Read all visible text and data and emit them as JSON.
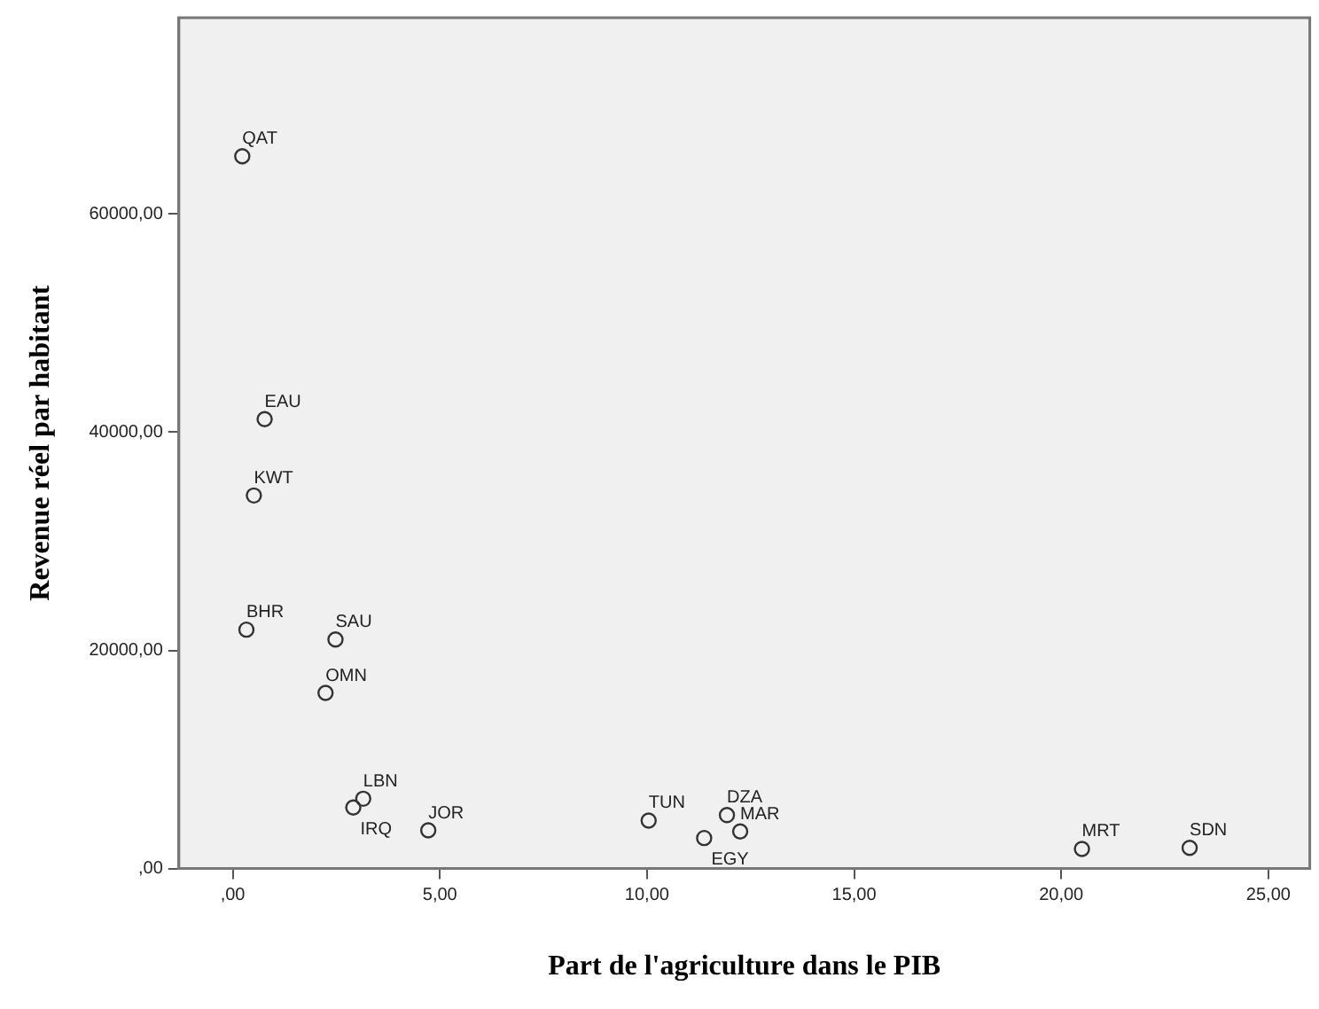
{
  "chart_data": {
    "type": "scatter",
    "xlabel": "Part de l'agriculture dans le PIB",
    "ylabel": "Revenue réel par habitant",
    "x": [
      0.23,
      0.77,
      0.51,
      0.33,
      2.48,
      2.24,
      3.15,
      2.91,
      4.72,
      10.04,
      11.38,
      11.93,
      12.25,
      20.5,
      23.1
    ],
    "series": [
      {
        "color": "#333333",
        "values": [
          65300,
          41200,
          34200,
          21900,
          21000,
          16100,
          6400,
          5600,
          3500,
          4400,
          2800,
          4900,
          3400,
          1800,
          1900
        ]
      }
    ],
    "xlim": [
      -1.3,
      26
    ],
    "ylim": [
      0,
      78000
    ],
    "xticks": [
      {
        "value": 0,
        "label": ",00"
      },
      {
        "value": 5,
        "label": "5,00"
      },
      {
        "value": 10,
        "label": "10,00"
      },
      {
        "value": 15,
        "label": "15,00"
      },
      {
        "value": 20,
        "label": "20,00"
      },
      {
        "value": 25,
        "label": "25,00"
      }
    ],
    "yticks": [
      {
        "value": 0,
        "label": ",00"
      },
      {
        "value": 20000,
        "label": "20000,00"
      },
      {
        "value": 40000,
        "label": "40000,00"
      },
      {
        "value": 60000,
        "label": "60000,00"
      }
    ],
    "annotations": [
      {
        "text": "QAT",
        "x": 0.23,
        "y": 65300
      },
      {
        "text": "EAU",
        "x": 0.77,
        "y": 41200
      },
      {
        "text": "KWT",
        "x": 0.51,
        "y": 34200
      },
      {
        "text": "BHR",
        "x": 0.33,
        "y": 21900
      },
      {
        "text": "SAU",
        "x": 2.48,
        "y": 21000
      },
      {
        "text": "OMN",
        "x": 2.24,
        "y": 16100
      },
      {
        "text": "LBN",
        "x": 3.15,
        "y": 6400
      },
      {
        "text": "IRQ",
        "x": 2.91,
        "y": 5600
      },
      {
        "text": "JOR",
        "x": 4.72,
        "y": 3500
      },
      {
        "text": "TUN",
        "x": 10.04,
        "y": 4400
      },
      {
        "text": "EGY",
        "x": 11.38,
        "y": 2800
      },
      {
        "text": "DZA",
        "x": 11.93,
        "y": 4900
      },
      {
        "text": "MAR",
        "x": 12.25,
        "y": 3400
      },
      {
        "text": "MRT",
        "x": 20.5,
        "y": 1800
      },
      {
        "text": "SDN",
        "x": 23.1,
        "y": 1900
      }
    ],
    "grid": false,
    "legend": false,
    "marker": "circle"
  }
}
